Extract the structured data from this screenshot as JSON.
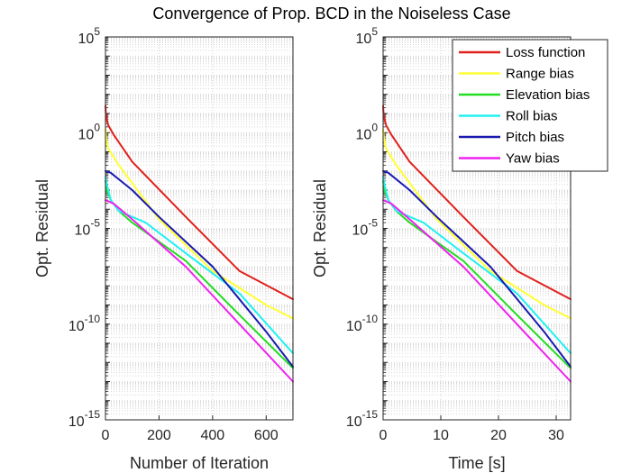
{
  "chart_data": {
    "type": "line",
    "title": "Convergence of Prop. BCD in the Noiseless Case",
    "y_scale": "log",
    "ylim": [
      1e-15,
      100000.0
    ],
    "ylabel": "Opt. Residual",
    "y_ticks": [
      {
        "value": 100000.0,
        "base": "10",
        "exp": "5"
      },
      {
        "value": 1.0,
        "base": "10",
        "exp": "0"
      },
      {
        "value": 1e-05,
        "base": "10",
        "exp": "-5"
      },
      {
        "value": 1e-10,
        "base": "10",
        "exp": "-10"
      },
      {
        "value": 1e-15,
        "base": "10",
        "exp": "-15"
      }
    ],
    "grid": "minor dotted",
    "legend_position": "top-right of right panel",
    "series_styles": [
      {
        "name": "Loss function",
        "color": "#e0201b"
      },
      {
        "name": "Range bias",
        "color": "#ffff33"
      },
      {
        "name": "Elevation bias",
        "color": "#22dd22"
      },
      {
        "name": "Roll bias",
        "color": "#22f0f0"
      },
      {
        "name": "Pitch bias",
        "color": "#1a1ab0"
      },
      {
        "name": "Yaw bias",
        "color": "#ee22ee"
      }
    ],
    "panels": [
      {
        "xlabel": "Number of Iteration",
        "xlim": [
          0,
          700
        ],
        "x_ticks": [
          0,
          200,
          400,
          600
        ],
        "series": [
          {
            "name": "Loss function",
            "points": [
              [
                0,
                25
              ],
              [
                2,
                8
              ],
              [
                10,
                2.5
              ],
              [
                30,
                0.8
              ],
              [
                100,
                0.03
              ],
              [
                300,
                4e-05
              ],
              [
                500,
                6e-08
              ],
              [
                700,
                2e-09
              ]
            ]
          },
          {
            "name": "Range bias",
            "points": [
              [
                0,
                1.5
              ],
              [
                3,
                0.5
              ],
              [
                10,
                0.15
              ],
              [
                50,
                0.02
              ],
              [
                200,
                3e-05
              ],
              [
                400,
                6e-08
              ],
              [
                600,
                1e-09
              ],
              [
                700,
                2e-10
              ]
            ]
          },
          {
            "name": "Elevation bias",
            "points": [
              [
                0,
                0.003
              ],
              [
                5,
                0.001
              ],
              [
                20,
                0.0003
              ],
              [
                50,
                8e-05
              ],
              [
                100,
                2e-05
              ],
              [
                300,
                2e-07
              ],
              [
                500,
                3e-10
              ],
              [
                700,
                5e-13
              ]
            ]
          },
          {
            "name": "Roll bias",
            "points": [
              [
                0,
                0.005
              ],
              [
                5,
                0.002
              ],
              [
                20,
                0.0003
              ],
              [
                50,
                8e-05
              ],
              [
                150,
                2e-05
              ],
              [
                300,
                5e-07
              ],
              [
                500,
                4e-09
              ],
              [
                700,
                3e-12
              ]
            ]
          },
          {
            "name": "Pitch bias",
            "points": [
              [
                0,
                0.01
              ],
              [
                20,
                0.008
              ],
              [
                100,
                0.001
              ],
              [
                200,
                4e-05
              ],
              [
                400,
                1e-07
              ],
              [
                600,
                4e-11
              ],
              [
                700,
                6e-13
              ]
            ]
          },
          {
            "name": "Yaw bias",
            "points": [
              [
                0,
                0.0003
              ],
              [
                30,
                0.0002
              ],
              [
                100,
                3e-05
              ],
              [
                300,
                1e-07
              ],
              [
                500,
                1e-10
              ],
              [
                700,
                1e-13
              ]
            ]
          }
        ]
      },
      {
        "xlabel": "Time [s]",
        "xlim": [
          0,
          32.5
        ],
        "x_ticks": [
          0,
          10,
          20,
          30
        ],
        "series": [
          {
            "name": "Loss function",
            "points": [
              [
                0,
                25
              ],
              [
                0.1,
                8
              ],
              [
                0.5,
                2.5
              ],
              [
                1.4,
                0.8
              ],
              [
                4.6,
                0.03
              ],
              [
                13.9,
                4e-05
              ],
              [
                23.2,
                6e-08
              ],
              [
                32.5,
                2e-09
              ]
            ]
          },
          {
            "name": "Range bias",
            "points": [
              [
                0,
                1.5
              ],
              [
                0.14,
                0.5
              ],
              [
                0.5,
                0.15
              ],
              [
                2.3,
                0.02
              ],
              [
                9.3,
                3e-05
              ],
              [
                18.6,
                6e-08
              ],
              [
                27.9,
                1e-09
              ],
              [
                32.5,
                2e-10
              ]
            ]
          },
          {
            "name": "Elevation bias",
            "points": [
              [
                0,
                0.003
              ],
              [
                0.23,
                0.001
              ],
              [
                0.9,
                0.0003
              ],
              [
                2.3,
                8e-05
              ],
              [
                4.6,
                2e-05
              ],
              [
                13.9,
                2e-07
              ],
              [
                23.2,
                3e-10
              ],
              [
                32.5,
                5e-13
              ]
            ]
          },
          {
            "name": "Roll bias",
            "points": [
              [
                0,
                0.005
              ],
              [
                0.23,
                0.002
              ],
              [
                0.9,
                0.0003
              ],
              [
                2.3,
                8e-05
              ],
              [
                7,
                2e-05
              ],
              [
                13.9,
                5e-07
              ],
              [
                23.2,
                4e-09
              ],
              [
                32.5,
                3e-12
              ]
            ]
          },
          {
            "name": "Pitch bias",
            "points": [
              [
                0,
                0.01
              ],
              [
                0.9,
                0.008
              ],
              [
                4.6,
                0.001
              ],
              [
                9.3,
                4e-05
              ],
              [
                18.6,
                1e-07
              ],
              [
                27.9,
                4e-11
              ],
              [
                32.5,
                6e-13
              ]
            ]
          },
          {
            "name": "Yaw bias",
            "points": [
              [
                0,
                0.0003
              ],
              [
                1.4,
                0.0002
              ],
              [
                4.6,
                3e-05
              ],
              [
                13.9,
                1e-07
              ],
              [
                23.2,
                1e-10
              ],
              [
                32.5,
                1e-13
              ]
            ]
          }
        ]
      }
    ]
  }
}
